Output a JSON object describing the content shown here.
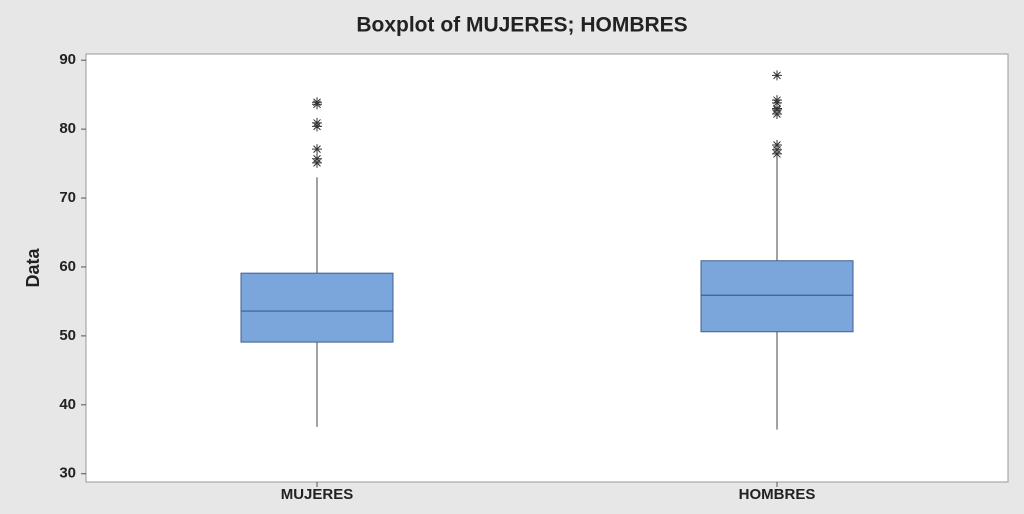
{
  "chart_data": {
    "type": "box",
    "title": "Boxplot of MUJERES; HOMBRES",
    "y_label": "Data",
    "categories": [
      "MUJERES",
      "HOMBRES"
    ],
    "color": "#7ba6dc",
    "boxes": [
      {
        "whisker_low": 36.8,
        "q1": 49.1,
        "median": 53.6,
        "q3": 59.1,
        "whisker_high": 73,
        "outliers": [
          83.9,
          83.6,
          80.9,
          80.4,
          77.1,
          75.7,
          75.1
        ]
      },
      {
        "whisker_low": 36.4,
        "q1": 50.6,
        "median": 55.9,
        "q3": 60.9,
        "whisker_high": 75.9,
        "outliers": [
          87.8,
          84.2,
          83.8,
          83,
          82.8,
          82.2,
          77.7,
          77,
          76.4
        ]
      }
    ],
    "ylim": [
      28.8,
      90.9
    ],
    "yticks": [
      30,
      40,
      50,
      60,
      70,
      80,
      90
    ],
    "grid": false
  }
}
